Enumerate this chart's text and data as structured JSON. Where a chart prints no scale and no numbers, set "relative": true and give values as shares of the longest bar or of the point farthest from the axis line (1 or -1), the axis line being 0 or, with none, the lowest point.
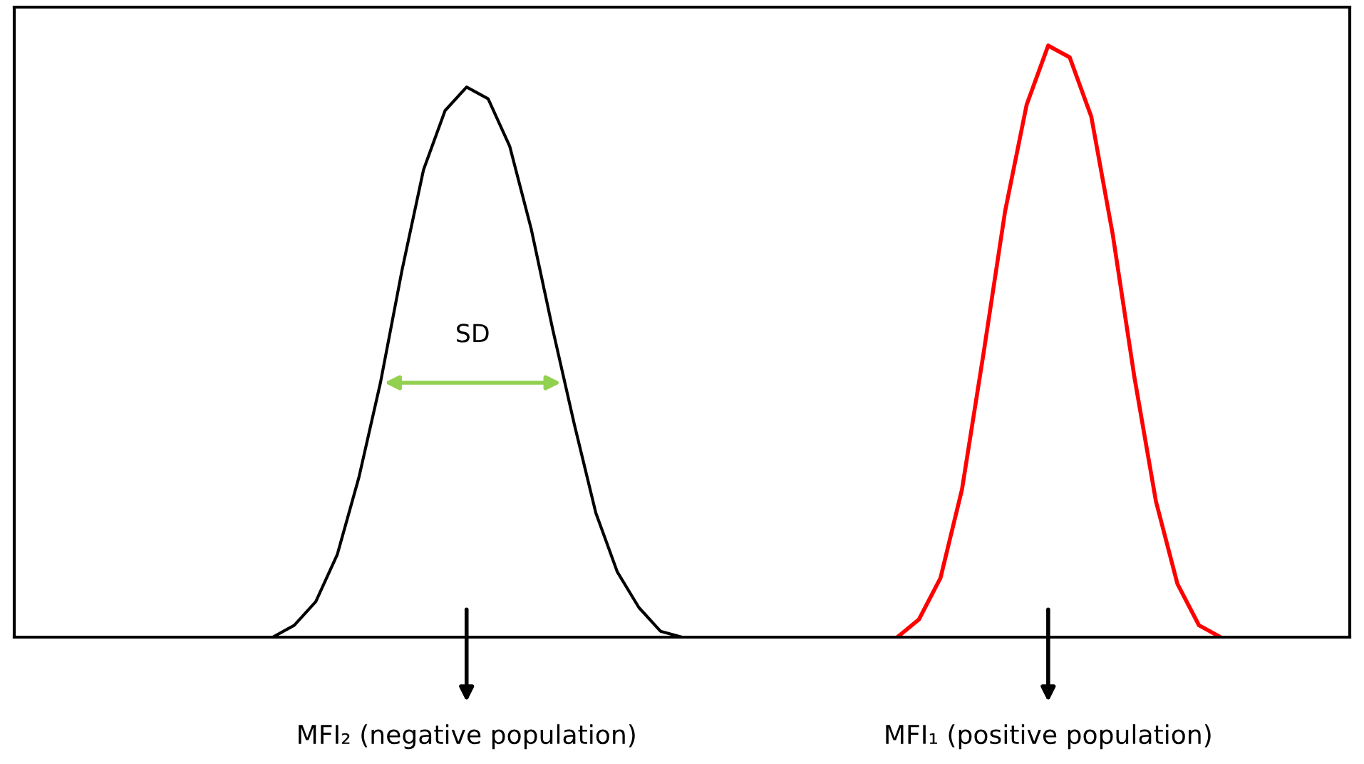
{
  "chart_data": {
    "type": "line",
    "relative": true,
    "legend": false,
    "categories": [
      null,
      null,
      null,
      null,
      null,
      null,
      null,
      null,
      null,
      null,
      null,
      null,
      null,
      null,
      null,
      null,
      null,
      null,
      null,
      null,
      null,
      null,
      null,
      null,
      null,
      null,
      null,
      null,
      null,
      null,
      null,
      null,
      null,
      null,
      null,
      null,
      null,
      null,
      null,
      null,
      null,
      null,
      null,
      null,
      null,
      null,
      null,
      null,
      null,
      null,
      null,
      null,
      null,
      null,
      null,
      null,
      null,
      null,
      null,
      null,
      null,
      null,
      null
    ],
    "series": [
      {
        "color": "#000000",
        "values": [
          null,
          null,
          null,
          null,
          null,
          null,
          null,
          null,
          null,
          null,
          null,
          null,
          0.0,
          0.02,
          0.06,
          0.14,
          0.27,
          0.43,
          0.62,
          0.79,
          0.89,
          0.93,
          0.91,
          0.83,
          0.69,
          0.52,
          0.36,
          0.21,
          0.11,
          0.05,
          0.01,
          0.0,
          null,
          null,
          null,
          null,
          null,
          null,
          null,
          null,
          null,
          null,
          null,
          null,
          null,
          null,
          null,
          null,
          null,
          null,
          null,
          null,
          null,
          null,
          null,
          null,
          null,
          null,
          null,
          null,
          null,
          null,
          null
        ]
      },
      {
        "color": "#ff0000",
        "values": [
          null,
          null,
          null,
          null,
          null,
          null,
          null,
          null,
          null,
          null,
          null,
          null,
          null,
          null,
          null,
          null,
          null,
          null,
          null,
          null,
          null,
          null,
          null,
          null,
          null,
          null,
          null,
          null,
          null,
          null,
          null,
          null,
          null,
          null,
          null,
          null,
          null,
          null,
          null,
          null,
          null,
          0.0,
          0.03,
          0.1,
          0.25,
          0.48,
          0.72,
          0.9,
          1,
          0.98,
          0.88,
          0.68,
          0.44,
          0.23,
          0.09,
          0.02,
          0.0,
          null,
          null,
          null,
          null,
          null,
          null
        ]
      }
    ],
    "annotations": [
      "SD",
      "MFI₂ (negative population)",
      "MFI₁ (positive population)"
    ]
  }
}
